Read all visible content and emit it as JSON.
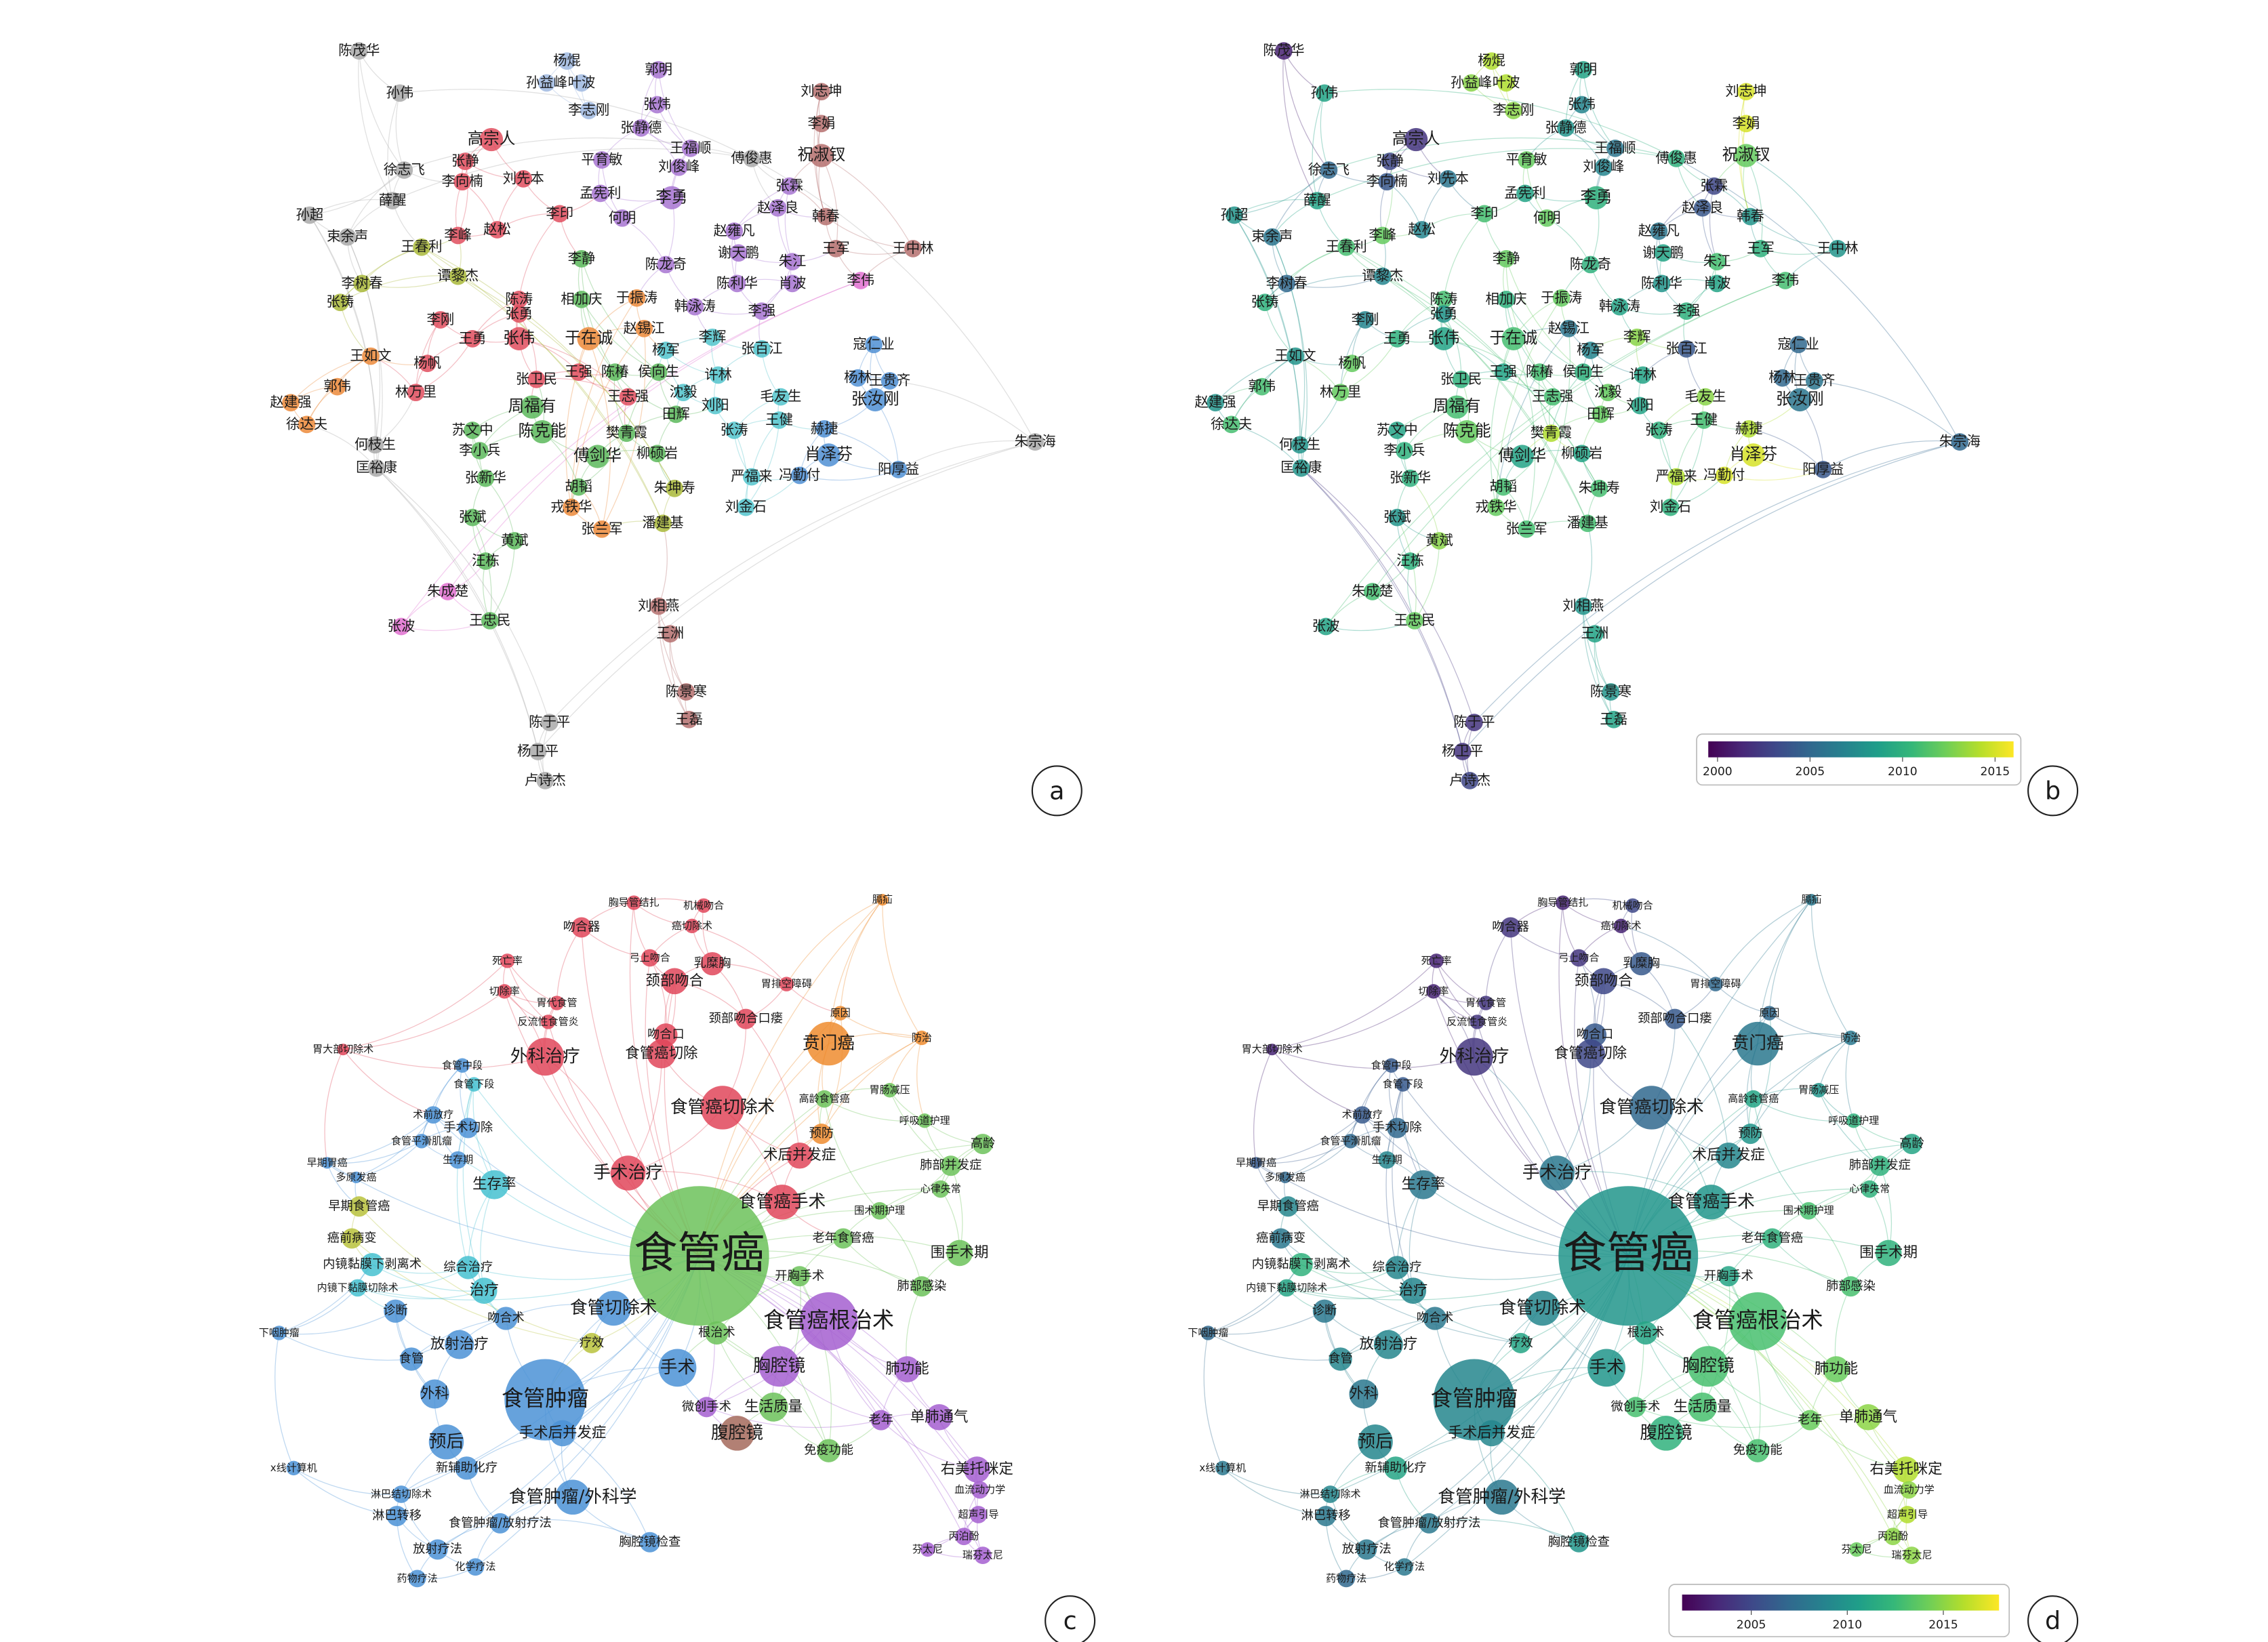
{
  "panel_labels": [
    "a",
    "b",
    "c",
    "d"
  ],
  "colormap": "viridis",
  "colorbars": [
    {
      "range": [
        1999.5,
        2016
      ],
      "ticks": [
        2000,
        2005,
        2010,
        2015
      ]
    },
    {
      "range": [
        2001.4,
        2017.9
      ],
      "ticks": [
        2005,
        2010,
        2015
      ]
    }
  ],
  "author_network": {
    "cluster_colors": [
      "#a9a9a9",
      "#9fb8e0",
      "#a774d1",
      "#b5706f",
      "#e04e5e",
      "#a9b83a",
      "#5cb85c",
      "#ec8a3a",
      "#e070d0",
      "#52c4cc",
      "#4f8fd4"
    ],
    "nodes": [
      {
        "label": "陈茂华",
        "cluster": 0,
        "year": 2001
      },
      {
        "label": "杨焜",
        "cluster": 1,
        "year": 2014
      },
      {
        "label": "孙益峰",
        "cluster": 1,
        "year": 2013
      },
      {
        "label": "叶波",
        "cluster": 1,
        "year": 2014
      },
      {
        "label": "郭明",
        "cluster": 2,
        "year": 2009
      },
      {
        "label": "孙伟",
        "cluster": 0,
        "year": 2009
      },
      {
        "label": "李志刚",
        "cluster": 1,
        "year": 2013
      },
      {
        "label": "张炜",
        "cluster": 2,
        "year": 2007
      },
      {
        "label": "刘志坤",
        "cluster": 3,
        "year": 2015
      },
      {
        "label": "李娟",
        "cluster": 3,
        "year": 2015
      },
      {
        "label": "高宗人",
        "cluster": 4,
        "year": 2002
      },
      {
        "label": "张静德",
        "cluster": 2,
        "year": 2008
      },
      {
        "label": "王福顺",
        "cluster": 2,
        "year": 2006
      },
      {
        "label": "平育敏",
        "cluster": 2,
        "year": 2012
      },
      {
        "label": "刘俊峰",
        "cluster": 2,
        "year": 2007
      },
      {
        "label": "傅俊惠",
        "cluster": 0,
        "year": 2010
      },
      {
        "label": "祝淑钗",
        "cluster": 3,
        "year": 2012
      },
      {
        "label": "徐志飞",
        "cluster": 0,
        "year": 2005
      },
      {
        "label": "张静",
        "cluster": 4,
        "year": 2003
      },
      {
        "label": "李向楠",
        "cluster": 4,
        "year": 2004
      },
      {
        "label": "刘先本",
        "cluster": 4,
        "year": 2006
      },
      {
        "label": "孟宪利",
        "cluster": 2,
        "year": 2009
      },
      {
        "label": "李勇",
        "cluster": 2,
        "year": 2010
      },
      {
        "label": "张霖",
        "cluster": 2,
        "year": 2003
      },
      {
        "label": "薛醒",
        "cluster": 0,
        "year": 2009
      },
      {
        "label": "赵泽良",
        "cluster": 2,
        "year": 2004
      },
      {
        "label": "李印",
        "cluster": 4,
        "year": 2011
      },
      {
        "label": "何明",
        "cluster": 2,
        "year": 2012
      },
      {
        "label": "韩春",
        "cluster": 3,
        "year": 2008
      },
      {
        "label": "孙超",
        "cluster": 0,
        "year": 2008
      },
      {
        "label": "束余声",
        "cluster": 0,
        "year": 2006
      },
      {
        "label": "王春利",
        "cluster": 5,
        "year": 2011
      },
      {
        "label": "李峰",
        "cluster": 4,
        "year": 2012
      },
      {
        "label": "赵松",
        "cluster": 4,
        "year": 2007
      },
      {
        "label": "赵雍凡",
        "cluster": 2,
        "year": 2006
      },
      {
        "label": "谢天鹏",
        "cluster": 2,
        "year": 2009
      },
      {
        "label": "王军",
        "cluster": 3,
        "year": 2010
      },
      {
        "label": "王中林",
        "cluster": 3,
        "year": 2008
      },
      {
        "label": "李树春",
        "cluster": 5,
        "year": 2005
      },
      {
        "label": "谭黎杰",
        "cluster": 5,
        "year": 2007
      },
      {
        "label": "李静",
        "cluster": 6,
        "year": 2012
      },
      {
        "label": "陈龙奇",
        "cluster": 2,
        "year": 2010
      },
      {
        "label": "朱江",
        "cluster": 2,
        "year": 2011
      },
      {
        "label": "陈利华",
        "cluster": 2,
        "year": 2008
      },
      {
        "label": "肖波",
        "cluster": 2,
        "year": 2009
      },
      {
        "label": "李伟",
        "cluster": 8,
        "year": 2011
      },
      {
        "label": "张铸",
        "cluster": 5,
        "year": 2010
      },
      {
        "label": "陈涛",
        "cluster": 4,
        "year": 2011
      },
      {
        "label": "相加庆",
        "cluster": 6,
        "year": 2010
      },
      {
        "label": "于振涛",
        "cluster": 7,
        "year": 2012
      },
      {
        "label": "韩泳涛",
        "cluster": 2,
        "year": 2009
      },
      {
        "label": "李强",
        "cluster": 2,
        "year": 2010
      },
      {
        "label": "李刚",
        "cluster": 4,
        "year": 2007
      },
      {
        "label": "张勇",
        "cluster": 4,
        "year": 2008
      },
      {
        "label": "赵锡江",
        "cluster": 7,
        "year": 2006
      },
      {
        "label": "王勇",
        "cluster": 4,
        "year": 2010
      },
      {
        "label": "张伟",
        "cluster": 4,
        "year": 2009
      },
      {
        "label": "于在诚",
        "cluster": 7,
        "year": 2011
      },
      {
        "label": "李辉",
        "cluster": 9,
        "year": 2013
      },
      {
        "label": "杨军",
        "cluster": 9,
        "year": 2007
      },
      {
        "label": "张百江",
        "cluster": 9,
        "year": 2004
      },
      {
        "label": "寇仁业",
        "cluster": 10,
        "year": 2005
      },
      {
        "label": "王如文",
        "cluster": 7,
        "year": 2008
      },
      {
        "label": "杨帆",
        "cluster": 4,
        "year": 2012
      },
      {
        "label": "王强",
        "cluster": 4,
        "year": 2009
      },
      {
        "label": "陈椿",
        "cluster": 6,
        "year": 2011
      },
      {
        "label": "侯向生",
        "cluster": 6,
        "year": 2010
      },
      {
        "label": "许林",
        "cluster": 9,
        "year": 2009
      },
      {
        "label": "王贵齐",
        "cluster": 10,
        "year": 2006
      },
      {
        "label": "郭伟",
        "cluster": 7,
        "year": 2011
      },
      {
        "label": "林万里",
        "cluster": 4,
        "year": 2012
      },
      {
        "label": "张卫民",
        "cluster": 4,
        "year": 2010
      },
      {
        "label": "王志强",
        "cluster": 4,
        "year": 2011
      },
      {
        "label": "沈毅",
        "cluster": 9,
        "year": 2012
      },
      {
        "label": "杨林",
        "cluster": 10,
        "year": 2005
      },
      {
        "label": "张汝刚",
        "cluster": 10,
        "year": 2006
      },
      {
        "label": "赵建强",
        "cluster": 7,
        "year": 2008
      },
      {
        "label": "毛友生",
        "cluster": 9,
        "year": 2013
      },
      {
        "label": "周福有",
        "cluster": 6,
        "year": 2011
      },
      {
        "label": "刘阳",
        "cluster": 9,
        "year": 2009
      },
      {
        "label": "徐达夫",
        "cluster": 7,
        "year": 2011
      },
      {
        "label": "田辉",
        "cluster": 6,
        "year": 2012
      },
      {
        "label": "王健",
        "cluster": 9,
        "year": 2011
      },
      {
        "label": "苏文中",
        "cluster": 6,
        "year": 2009
      },
      {
        "label": "陈克能",
        "cluster": 6,
        "year": 2012
      },
      {
        "label": "樊青霞",
        "cluster": 6,
        "year": 2014
      },
      {
        "label": "张涛",
        "cluster": 9,
        "year": 2010
      },
      {
        "label": "赫捷",
        "cluster": 10,
        "year": 2014
      },
      {
        "label": "何枝生",
        "cluster": 0,
        "year": 2008
      },
      {
        "label": "朱宗海",
        "cluster": 0,
        "year": 2005
      },
      {
        "label": "李小兵",
        "cluster": 6,
        "year": 2010
      },
      {
        "label": "柳硕岩",
        "cluster": 6,
        "year": 2009
      },
      {
        "label": "肖泽芬",
        "cluster": 10,
        "year": 2015
      },
      {
        "label": "匡裕康",
        "cluster": 0,
        "year": 2008
      },
      {
        "label": "傅剑华",
        "cluster": 6,
        "year": 2009
      },
      {
        "label": "张新华",
        "cluster": 6,
        "year": 2010
      },
      {
        "label": "朱坤寿",
        "cluster": 5,
        "year": 2011
      },
      {
        "label": "严福来",
        "cluster": 9,
        "year": 2014
      },
      {
        "label": "冯勤付",
        "cluster": 10,
        "year": 2015
      },
      {
        "label": "阳厚益",
        "cluster": 10,
        "year": 2004
      },
      {
        "label": "胡韬",
        "cluster": 6,
        "year": 2011
      },
      {
        "label": "戎铁华",
        "cluster": 7,
        "year": 2012
      },
      {
        "label": "刘金石",
        "cluster": 9,
        "year": 2010
      },
      {
        "label": "张斌",
        "cluster": 6,
        "year": 2008
      },
      {
        "label": "张兰军",
        "cluster": 7,
        "year": 2011
      },
      {
        "label": "潘建基",
        "cluster": 5,
        "year": 2011
      },
      {
        "label": "黄斌",
        "cluster": 6,
        "year": 2013
      },
      {
        "label": "汪栋",
        "cluster": 6,
        "year": 2010
      },
      {
        "label": "朱成楚",
        "cluster": 8,
        "year": 2011
      },
      {
        "label": "王忠民",
        "cluster": 6,
        "year": 2012
      },
      {
        "label": "张波",
        "cluster": 8,
        "year": 2009
      },
      {
        "label": "刘相燕",
        "cluster": 3,
        "year": 2008
      },
      {
        "label": "王洲",
        "cluster": 3,
        "year": 2009
      },
      {
        "label": "陈景寒",
        "cluster": 3,
        "year": 2008
      },
      {
        "label": "王磊",
        "cluster": 3,
        "year": 2009
      },
      {
        "label": "陈于平",
        "cluster": 0,
        "year": 2002
      },
      {
        "label": "杨卫平",
        "cluster": 0,
        "year": 2002
      },
      {
        "label": "卢诗杰",
        "cluster": 0,
        "year": 2003
      }
    ]
  },
  "keyword_network": {
    "cluster_colors": [
      "#e0475a",
      "#ee8c2f",
      "#6cc25a",
      "#4b92d6",
      "#45c1d0",
      "#a45fd0",
      "#b8c23c",
      "#a56a5c"
    ],
    "nodes": [
      {
        "label": "胸导管结扎",
        "cluster": 0,
        "year": 2003
      },
      {
        "label": "机械吻合",
        "cluster": 0,
        "year": 2005
      },
      {
        "label": "吻合器",
        "cluster": 0,
        "year": 2004
      },
      {
        "label": "癌切除术",
        "cluster": 0,
        "year": 2003
      },
      {
        "label": "膈疝",
        "cluster": 1,
        "year": 2008
      },
      {
        "label": "死亡率",
        "cluster": 0,
        "year": 2003
      },
      {
        "label": "弓上吻合",
        "cluster": 0,
        "year": 2004
      },
      {
        "label": "乳糜胸",
        "cluster": 0,
        "year": 2006
      },
      {
        "label": "切除率",
        "cluster": 0,
        "year": 2003
      },
      {
        "label": "胃代食管",
        "cluster": 0,
        "year": 2004
      },
      {
        "label": "颈部吻合",
        "cluster": 0,
        "year": 2005
      },
      {
        "label": "颈部吻合口瘘",
        "cluster": 0,
        "year": 2006
      },
      {
        "label": "反流性食管炎",
        "cluster": 0,
        "year": 2004
      },
      {
        "label": "胃排空障碍",
        "cluster": 0,
        "year": 2007
      },
      {
        "label": "原因",
        "cluster": 1,
        "year": 2007
      },
      {
        "label": "吻合口",
        "cluster": 0,
        "year": 2006
      },
      {
        "label": "防治",
        "cluster": 1,
        "year": 2008
      },
      {
        "label": "胃大部切除术",
        "cluster": 0,
        "year": 2003
      },
      {
        "label": "外科治疗",
        "cluster": 0,
        "year": 2004
      },
      {
        "label": "食管癌切除",
        "cluster": 0,
        "year": 2005
      },
      {
        "label": "贲门癌",
        "cluster": 1,
        "year": 2008
      },
      {
        "label": "食管中段",
        "cluster": 3,
        "year": 2006
      },
      {
        "label": "食管下段",
        "cluster": 4,
        "year": 2006
      },
      {
        "label": "胃肠减压",
        "cluster": 2,
        "year": 2010
      },
      {
        "label": "高龄食管癌",
        "cluster": 2,
        "year": 2011
      },
      {
        "label": "食管癌切除术",
        "cluster": 0,
        "year": 2007
      },
      {
        "label": "术前放疗",
        "cluster": 3,
        "year": 2006
      },
      {
        "label": "呼吸道护理",
        "cluster": 2,
        "year": 2012
      },
      {
        "label": "高龄",
        "cluster": 2,
        "year": 2011
      },
      {
        "label": "手术切除",
        "cluster": 3,
        "year": 2007
      },
      {
        "label": "预防",
        "cluster": 1,
        "year": 2010
      },
      {
        "label": "食管平滑肌瘤",
        "cluster": 3,
        "year": 2007
      },
      {
        "label": "术后并发症",
        "cluster": 0,
        "year": 2009
      },
      {
        "label": "肺部并发症",
        "cluster": 2,
        "year": 2012
      },
      {
        "label": "手术治疗",
        "cluster": 0,
        "year": 2008
      },
      {
        "label": "生存期",
        "cluster": 3,
        "year": 2009
      },
      {
        "label": "早期胃癌",
        "cluster": 3,
        "year": 2006
      },
      {
        "label": "多原发癌",
        "cluster": 3,
        "year": 2007
      },
      {
        "label": "生存率",
        "cluster": 4,
        "year": 2008
      },
      {
        "label": "食管癌手术",
        "cluster": 0,
        "year": 2010
      },
      {
        "label": "心律失常",
        "cluster": 2,
        "year": 2012
      },
      {
        "label": "早期食管癌",
        "cluster": 6,
        "year": 2009
      },
      {
        "label": "围术期护理",
        "cluster": 2,
        "year": 2013
      },
      {
        "label": "癌前病变",
        "cluster": 6,
        "year": 2008
      },
      {
        "label": "食管癌",
        "cluster": 2,
        "year": 2010
      },
      {
        "label": "老年食管癌",
        "cluster": 2,
        "year": 2012
      },
      {
        "label": "围手术期",
        "cluster": 2,
        "year": 2012
      },
      {
        "label": "内镜黏膜下剥离术",
        "cluster": 4,
        "year": 2012
      },
      {
        "label": "综合治疗",
        "cluster": 4,
        "year": 2009
      },
      {
        "label": "治疗",
        "cluster": 4,
        "year": 2009
      },
      {
        "label": "内镜下黏膜切除术",
        "cluster": 4,
        "year": 2011
      },
      {
        "label": "开胸手术",
        "cluster": 2,
        "year": 2011
      },
      {
        "label": "肺部感染",
        "cluster": 2,
        "year": 2013
      },
      {
        "label": "诊断",
        "cluster": 3,
        "year": 2008
      },
      {
        "label": "食管切除术",
        "cluster": 3,
        "year": 2009
      },
      {
        "label": "吻合术",
        "cluster": 3,
        "year": 2008
      },
      {
        "label": "食管癌根治术",
        "cluster": 5,
        "year": 2013
      },
      {
        "label": "下咽肿瘤",
        "cluster": 3,
        "year": 2007
      },
      {
        "label": "根治术",
        "cluster": 2,
        "year": 2011
      },
      {
        "label": "放射治疗",
        "cluster": 3,
        "year": 2009
      },
      {
        "label": "疗效",
        "cluster": 6,
        "year": 2011
      },
      {
        "label": "食管",
        "cluster": 3,
        "year": 2009
      },
      {
        "label": "手术",
        "cluster": 3,
        "year": 2010
      },
      {
        "label": "胸腔镜",
        "cluster": 5,
        "year": 2013
      },
      {
        "label": "肺功能",
        "cluster": 5,
        "year": 2014
      },
      {
        "label": "外科",
        "cluster": 3,
        "year": 2008
      },
      {
        "label": "食管肿瘤",
        "cluster": 3,
        "year": 2009
      },
      {
        "label": "生活质量",
        "cluster": 2,
        "year": 2013
      },
      {
        "label": "微创手术",
        "cluster": 5,
        "year": 2013
      },
      {
        "label": "单肺通气",
        "cluster": 5,
        "year": 2015
      },
      {
        "label": "老年",
        "cluster": 5,
        "year": 2014
      },
      {
        "label": "预后",
        "cluster": 3,
        "year": 2009
      },
      {
        "label": "手术后并发症",
        "cluster": 3,
        "year": 2009
      },
      {
        "label": "腹腔镜",
        "cluster": 7,
        "year": 2012
      },
      {
        "label": "免疫功能",
        "cluster": 2,
        "year": 2013
      },
      {
        "label": "x线计算机",
        "cluster": 3,
        "year": 2008
      },
      {
        "label": "右美托咪定",
        "cluster": 5,
        "year": 2016
      },
      {
        "label": "新辅助化疗",
        "cluster": 3,
        "year": 2011
      },
      {
        "label": "淋巴结切除术",
        "cluster": 3,
        "year": 2009
      },
      {
        "label": "食管肿瘤/外科学",
        "cluster": 3,
        "year": 2008
      },
      {
        "label": "血流动力学",
        "cluster": 5,
        "year": 2015
      },
      {
        "label": "淋巴转移",
        "cluster": 3,
        "year": 2008
      },
      {
        "label": "食管肿瘤/放射疗法",
        "cluster": 3,
        "year": 2008
      },
      {
        "label": "超声引导",
        "cluster": 5,
        "year": 2016
      },
      {
        "label": "放射疗法",
        "cluster": 3,
        "year": 2008
      },
      {
        "label": "胸腔镜检查",
        "cluster": 3,
        "year": 2010
      },
      {
        "label": "丙泊酚",
        "cluster": 5,
        "year": 2015
      },
      {
        "label": "药物疗法",
        "cluster": 3,
        "year": 2007
      },
      {
        "label": "化学疗法",
        "cluster": 3,
        "year": 2008
      },
      {
        "label": "芬太尼",
        "cluster": 5,
        "year": 2014
      },
      {
        "label": "瑞芬太尼",
        "cluster": 5,
        "year": 2015
      }
    ]
  }
}
